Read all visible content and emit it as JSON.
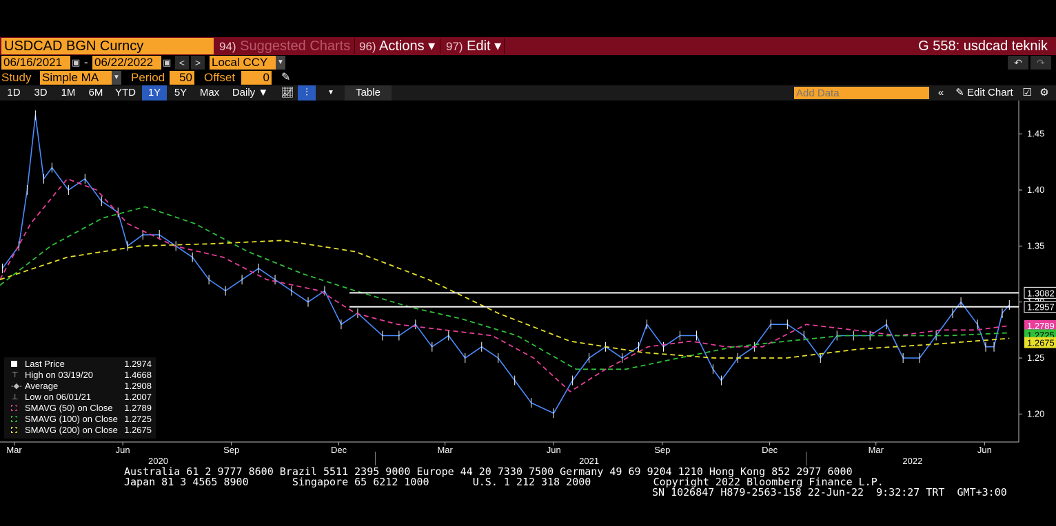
{
  "title_bar": {
    "security": "USDCAD BGN Curncy",
    "menu": [
      {
        "num": "94)",
        "label": "Suggested Charts"
      },
      {
        "num": "96)",
        "label": "Actions ▾"
      },
      {
        "num": "97)",
        "label": "Edit ▾"
      }
    ],
    "page_title": "G 558: usdcad teknik"
  },
  "controls": {
    "start_date": "06/16/2021",
    "end_date": "06/22/2022",
    "date_sep": "-",
    "currency": "Local CCY",
    "study_label": "Study",
    "study_value": "Simple MA",
    "period_label": "Period",
    "period_value": "50",
    "offset_label": "Offset",
    "offset_value": "0",
    "ranges": [
      "1D",
      "3D",
      "1M",
      "6M",
      "YTD",
      "1Y",
      "5Y",
      "Max"
    ],
    "active_range": "1Y",
    "frequency": "Daily ▼",
    "table_label": "Table",
    "add_data_placeholder": "Add Data",
    "edit_chart_label": "Edit Chart"
  },
  "legend": {
    "rows": [
      {
        "label": "Last Price",
        "value": "1.2974",
        "color": "#ffffff"
      },
      {
        "label": "High on 03/19/20",
        "value": "1.4668",
        "color": "#bbbbbb"
      },
      {
        "label": "Average",
        "value": "1.2908",
        "color": "#bbbbbb"
      },
      {
        "label": "Low on 06/01/21",
        "value": "1.2007",
        "color": "#bbbbbb"
      },
      {
        "label": "SMAVG (50)  on Close",
        "value": "1.2789",
        "color": "#e83e9a"
      },
      {
        "label": "SMAVG (100)  on Close",
        "value": "1.2725",
        "color": "#2fbf3a"
      },
      {
        "label": "SMAVG (200)  on Close",
        "value": "1.2675",
        "color": "#e8e02a"
      }
    ]
  },
  "chart_data": {
    "type": "line",
    "title": "",
    "xlabel": "",
    "ylabel": "",
    "ylim": [
      1.175,
      1.475
    ],
    "y_ticks": [
      1.2,
      1.25,
      1.3,
      1.35,
      1.4,
      1.45
    ],
    "y_tick_labels": [
      "1.20",
      "1.25",
      "1.30",
      "1.35",
      "1.40",
      "1.45"
    ],
    "x_tick_labels": [
      "Mar",
      "Jun",
      "Sep",
      "Dec",
      "Mar",
      "Jun",
      "Sep",
      "Dec",
      "Mar",
      "Jun"
    ],
    "x_tick_months": [
      "2020-03",
      "2020-06",
      "2020-09",
      "2020-12",
      "2021-03",
      "2021-06",
      "2021-09",
      "2021-12",
      "2022-03",
      "2022-06"
    ],
    "year_labels": [
      {
        "text": "2020",
        "month": "2020-07"
      },
      {
        "text": "2021",
        "month": "2021-07"
      },
      {
        "text": "2022",
        "month": "2022-04"
      }
    ],
    "x_range": [
      "2020-02-18",
      "2022-06-30"
    ],
    "grid": false,
    "series": [
      {
        "name": "Last Price",
        "color": "#4a8cff",
        "x": [
          "2020-02-20",
          "2020-03-05",
          "2020-03-12",
          "2020-03-19",
          "2020-03-26",
          "2020-04-02",
          "2020-04-16",
          "2020-04-30",
          "2020-05-14",
          "2020-05-28",
          "2020-06-05",
          "2020-06-18",
          "2020-07-02",
          "2020-07-16",
          "2020-07-30",
          "2020-08-13",
          "2020-08-27",
          "2020-09-10",
          "2020-09-24",
          "2020-10-08",
          "2020-10-22",
          "2020-11-05",
          "2020-11-19",
          "2020-12-03",
          "2020-12-17",
          "2021-01-07",
          "2021-01-21",
          "2021-02-04",
          "2021-02-18",
          "2021-03-04",
          "2021-03-18",
          "2021-04-01",
          "2021-04-15",
          "2021-04-29",
          "2021-05-13",
          "2021-06-01",
          "2021-06-17",
          "2021-07-01",
          "2021-07-15",
          "2021-07-29",
          "2021-08-12",
          "2021-08-19",
          "2021-09-02",
          "2021-09-16",
          "2021-09-30",
          "2021-10-14",
          "2021-10-21",
          "2021-11-04",
          "2021-11-18",
          "2021-12-02",
          "2021-12-16",
          "2021-12-30",
          "2022-01-13",
          "2022-01-27",
          "2022-02-10",
          "2022-02-24",
          "2022-03-10",
          "2022-03-24",
          "2022-04-07",
          "2022-04-21",
          "2022-05-05",
          "2022-05-12",
          "2022-05-26",
          "2022-06-02",
          "2022-06-09",
          "2022-06-16",
          "2022-06-22"
        ],
        "y": [
          1.33,
          1.35,
          1.4,
          1.4668,
          1.41,
          1.42,
          1.4,
          1.41,
          1.39,
          1.38,
          1.35,
          1.36,
          1.36,
          1.35,
          1.34,
          1.32,
          1.31,
          1.32,
          1.33,
          1.32,
          1.31,
          1.3,
          1.31,
          1.28,
          1.29,
          1.27,
          1.27,
          1.28,
          1.26,
          1.27,
          1.25,
          1.26,
          1.25,
          1.23,
          1.21,
          1.2007,
          1.23,
          1.25,
          1.26,
          1.25,
          1.26,
          1.28,
          1.26,
          1.27,
          1.27,
          1.24,
          1.23,
          1.25,
          1.26,
          1.28,
          1.28,
          1.27,
          1.25,
          1.27,
          1.27,
          1.27,
          1.28,
          1.25,
          1.25,
          1.27,
          1.29,
          1.3,
          1.28,
          1.26,
          1.26,
          1.29,
          1.2974
        ]
      },
      {
        "name": "SMAVG (50)",
        "color": "#e83e9a",
        "x": [
          "2020-02-18",
          "2020-03-15",
          "2020-04-15",
          "2020-05-10",
          "2020-06-05",
          "2020-07-15",
          "2020-08-25",
          "2020-10-01",
          "2020-11-15",
          "2020-12-15",
          "2021-01-20",
          "2021-03-01",
          "2021-04-10",
          "2021-05-15",
          "2021-06-15",
          "2021-07-15",
          "2021-08-20",
          "2021-09-25",
          "2021-10-25",
          "2021-11-25",
          "2022-01-01",
          "2022-02-10",
          "2022-03-20",
          "2022-04-25",
          "2022-05-25",
          "2022-06-22"
        ],
        "y": [
          1.32,
          1.37,
          1.41,
          1.4,
          1.37,
          1.35,
          1.34,
          1.32,
          1.31,
          1.29,
          1.28,
          1.275,
          1.27,
          1.25,
          1.22,
          1.24,
          1.26,
          1.265,
          1.26,
          1.26,
          1.28,
          1.275,
          1.27,
          1.275,
          1.275,
          1.2789
        ]
      },
      {
        "name": "SMAVG (100)",
        "color": "#2fbf3a",
        "x": [
          "2020-02-18",
          "2020-04-01",
          "2020-05-15",
          "2020-06-20",
          "2020-08-01",
          "2020-09-15",
          "2020-11-01",
          "2020-12-15",
          "2021-02-01",
          "2021-03-15",
          "2021-05-01",
          "2021-06-20",
          "2021-08-01",
          "2021-09-15",
          "2021-11-01",
          "2021-12-15",
          "2022-02-01",
          "2022-03-15",
          "2022-05-01",
          "2022-06-22"
        ],
        "y": [
          1.315,
          1.35,
          1.375,
          1.385,
          1.37,
          1.345,
          1.325,
          1.31,
          1.295,
          1.285,
          1.27,
          1.24,
          1.24,
          1.25,
          1.26,
          1.265,
          1.27,
          1.27,
          1.27,
          1.2725
        ]
      },
      {
        "name": "SMAVG (200)",
        "color": "#e8e02a",
        "x": [
          "2020-02-18",
          "2020-04-15",
          "2020-06-15",
          "2020-08-15",
          "2020-10-15",
          "2020-12-15",
          "2021-02-15",
          "2021-04-15",
          "2021-06-15",
          "2021-08-15",
          "2021-10-15",
          "2021-12-15",
          "2022-02-15",
          "2022-04-15",
          "2022-06-22"
        ],
        "y": [
          1.32,
          1.34,
          1.35,
          1.352,
          1.355,
          1.345,
          1.32,
          1.29,
          1.265,
          1.255,
          1.25,
          1.25,
          1.258,
          1.262,
          1.2675
        ]
      }
    ],
    "horizontal_lines": [
      {
        "value": 1.3082,
        "label": "1.3082",
        "from": "2020-12-10",
        "color": "#ffffff"
      },
      {
        "value": 1.2957,
        "label": "1.2957",
        "from": "2020-12-10",
        "color": "#ffffff"
      }
    ],
    "price_tags": [
      {
        "label": "1.2789",
        "value": 1.2789,
        "color": "#e83e9a"
      },
      {
        "label": "1.2725",
        "value": 1.2725,
        "color": "#2fbf3a"
      },
      {
        "label": "1.2675",
        "value": 1.2675,
        "color": "#e8e02a"
      }
    ]
  },
  "footer": {
    "line1": "Australia 61 2 9777 8600 Brazil 5511 2395 9000 Europe 44 20 7330 7500 Germany 49 69 9204 1210 Hong Kong 852 2977 6000",
    "line2": "Japan 81 3 4565 8900       Singapore 65 6212 1000       U.S. 1 212 318 2000          Copyright 2022 Bloomberg Finance L.P.",
    "line3": "SN 1026847 H879-2563-158 22-Jun-22  9:32:27 TRT  GMT+3:00"
  }
}
